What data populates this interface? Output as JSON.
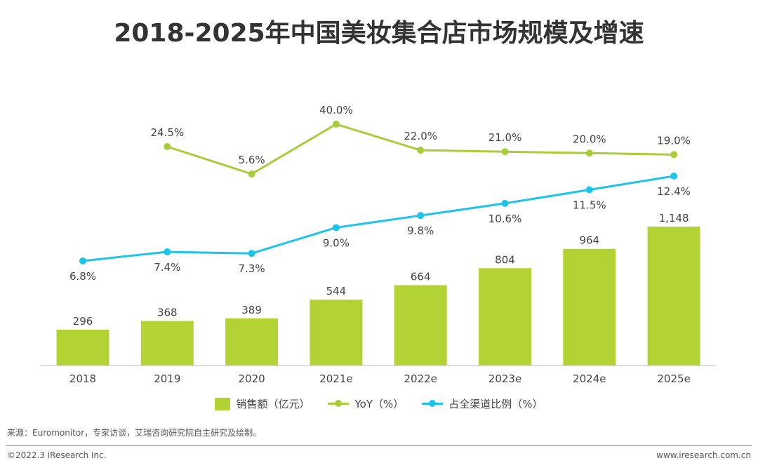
{
  "chart_data": {
    "type": "bar+line",
    "title": "2018-2025年中国美妆集合店市场规模及增速",
    "categories": [
      "2018",
      "2019",
      "2020",
      "2021e",
      "2022e",
      "2023e",
      "2024e",
      "2025e"
    ],
    "series": [
      {
        "name": "销售额（亿元）",
        "type": "bar",
        "color": "#b3d334",
        "values": [
          296,
          368,
          389,
          544,
          664,
          804,
          964,
          1148
        ],
        "labels": [
          "296",
          "368",
          "389",
          "544",
          "664",
          "804",
          "964",
          "1,148"
        ]
      },
      {
        "name": "YoY（%）",
        "type": "line",
        "color": "#a8cc3a",
        "values": [
          null,
          24.5,
          5.6,
          40.0,
          22.0,
          21.0,
          20.0,
          19.0
        ],
        "labels": [
          "",
          "24.5%",
          "5.6%",
          "40.0%",
          "22.0%",
          "21.0%",
          "20.0%",
          "19.0%"
        ]
      },
      {
        "name": "占全渠道比例（%）",
        "type": "line",
        "color": "#1ec3ea",
        "values": [
          6.8,
          7.4,
          7.3,
          9.0,
          9.8,
          10.6,
          11.5,
          12.4
        ],
        "labels": [
          "6.8%",
          "7.4%",
          "7.3%",
          "9.0%",
          "9.8%",
          "10.6%",
          "11.5%",
          "12.4%"
        ]
      }
    ],
    "legend": "bottom",
    "grid": false
  },
  "footer": {
    "source": "来源：Euromonitor，专家访谈，艾瑞咨询研究院自主研究及绘制。",
    "copyright": "©2022.3 iResearch Inc.",
    "website": "www.iresearch.com.cn"
  }
}
